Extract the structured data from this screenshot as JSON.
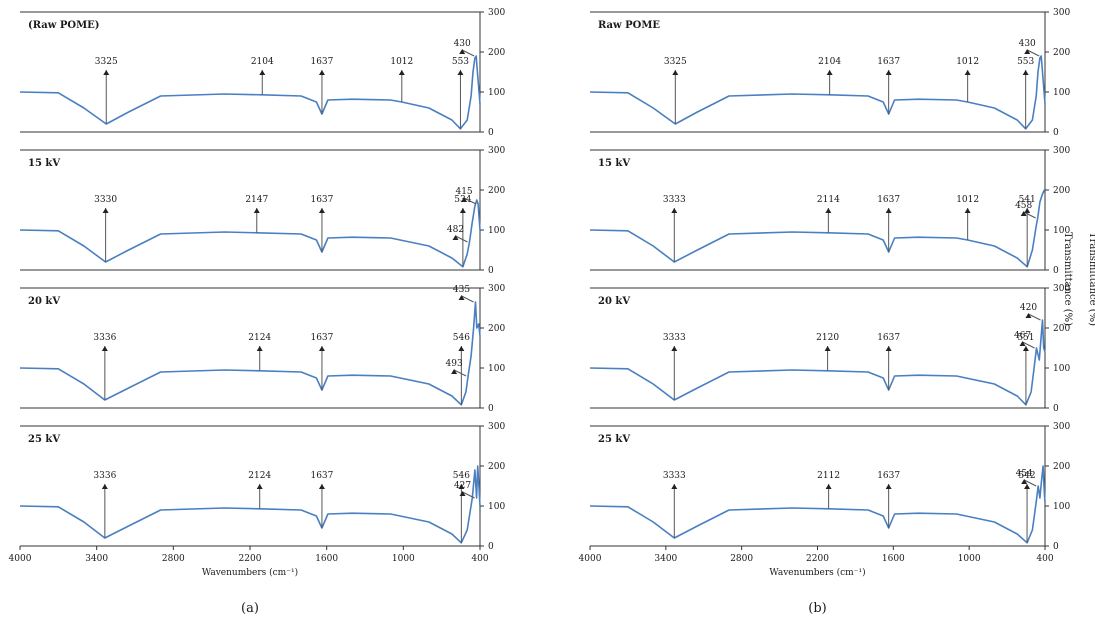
{
  "figure": {
    "line_color": "#4a7fc1",
    "axis_color": "#333333",
    "x_axis": {
      "reversed": true,
      "range": [
        4000,
        400
      ],
      "ticks": [
        "4000",
        "3400",
        "2800",
        "2200",
        "1600",
        "1000",
        "400"
      ],
      "label": "Wavenumbers (cm⁻¹)"
    },
    "y_axis": {
      "range": [
        0,
        300
      ],
      "ticks": [
        "0",
        "100",
        "200",
        "300"
      ],
      "label": "Transmittance (%)",
      "position": "right"
    }
  },
  "chart_data": [
    {
      "type": "line",
      "caption": "(a)",
      "panels": [
        {
          "title": "(Raw POME)",
          "series": [
            {
              "x": [
                4000,
                3700,
                3500,
                3325,
                3150,
                2900,
                2400,
                2104,
                1800,
                1680,
                1637,
                1590,
                1400,
                1100,
                1012,
                800,
                620,
                553,
                500,
                470,
                455,
                440,
                430,
                420,
                405,
                400
              ],
              "y": [
                100,
                98,
                60,
                20,
                50,
                90,
                95,
                93,
                90,
                75,
                45,
                80,
                82,
                80,
                75,
                60,
                30,
                8,
                30,
                90,
                150,
                185,
                190,
                150,
                90,
                70
              ]
            }
          ],
          "peaks": [
            {
              "label": "3325",
              "x": 3325,
              "y": 20,
              "type": "valley"
            },
            {
              "label": "2104",
              "x": 2104,
              "y": 93,
              "type": "valley"
            },
            {
              "label": "1637",
              "x": 1637,
              "y": 45,
              "type": "valley"
            },
            {
              "label": "1012",
              "x": 1012,
              "y": 75,
              "type": "valley"
            },
            {
              "label": "553",
              "x": 553,
              "y": 8,
              "type": "valley"
            },
            {
              "label": "430",
              "x": 430,
              "y": 190,
              "type": "peak"
            }
          ]
        },
        {
          "title": "15 kV",
          "series": [
            {
              "x": [
                4000,
                3700,
                3500,
                3330,
                3150,
                2900,
                2400,
                2147,
                1800,
                1680,
                1637,
                1590,
                1400,
                1100,
                800,
                620,
                534,
                500,
                482,
                460,
                440,
                425,
                415,
                405,
                400
              ],
              "y": [
                100,
                98,
                60,
                20,
                50,
                90,
                95,
                93,
                90,
                75,
                45,
                80,
                82,
                80,
                60,
                30,
                8,
                40,
                70,
                120,
                160,
                175,
                165,
                120,
                100
              ]
            }
          ],
          "peaks": [
            {
              "label": "3330",
              "x": 3330,
              "y": 20,
              "type": "valley"
            },
            {
              "label": "2147",
              "x": 2147,
              "y": 93,
              "type": "valley"
            },
            {
              "label": "1637",
              "x": 1637,
              "y": 45,
              "type": "valley"
            },
            {
              "label": "534",
              "x": 534,
              "y": 8,
              "type": "valley"
            },
            {
              "label": "482",
              "x": 482,
              "y": 70,
              "type": "peak"
            },
            {
              "label": "415",
              "x": 415,
              "y": 165,
              "type": "peak"
            }
          ]
        },
        {
          "title": "20 kV",
          "series": [
            {
              "x": [
                4000,
                3700,
                3500,
                3336,
                3150,
                2900,
                2400,
                2124,
                1800,
                1680,
                1637,
                1590,
                1400,
                1100,
                800,
                620,
                546,
                510,
                493,
                470,
                450,
                435,
                425,
                410,
                400
              ],
              "y": [
                100,
                98,
                60,
                20,
                50,
                90,
                95,
                93,
                90,
                75,
                45,
                80,
                82,
                80,
                60,
                30,
                8,
                40,
                80,
                130,
                200,
                265,
                200,
                210,
                180
              ]
            }
          ],
          "peaks": [
            {
              "label": "3336",
              "x": 3336,
              "y": 20,
              "type": "valley"
            },
            {
              "label": "2124",
              "x": 2124,
              "y": 93,
              "type": "valley"
            },
            {
              "label": "1637",
              "x": 1637,
              "y": 45,
              "type": "valley"
            },
            {
              "label": "546",
              "x": 546,
              "y": 8,
              "type": "valley"
            },
            {
              "label": "493",
              "x": 493,
              "y": 80,
              "type": "peak"
            },
            {
              "label": "435",
              "x": 435,
              "y": 265,
              "type": "peak"
            }
          ]
        },
        {
          "title": "25 kV",
          "series": [
            {
              "x": [
                4000,
                3700,
                3500,
                3336,
                3150,
                2900,
                2400,
                2124,
                1800,
                1680,
                1637,
                1590,
                1400,
                1100,
                800,
                620,
                546,
                500,
                460,
                440,
                427,
                418,
                410,
                400
              ],
              "y": [
                100,
                98,
                60,
                20,
                50,
                90,
                95,
                93,
                90,
                75,
                45,
                80,
                82,
                80,
                60,
                30,
                8,
                40,
                120,
                190,
                120,
                200,
                160,
                100
              ]
            }
          ],
          "peaks": [
            {
              "label": "3336",
              "x": 3336,
              "y": 20,
              "type": "valley"
            },
            {
              "label": "2124",
              "x": 2124,
              "y": 93,
              "type": "valley"
            },
            {
              "label": "1637",
              "x": 1637,
              "y": 45,
              "type": "valley"
            },
            {
              "label": "546",
              "x": 546,
              "y": 8,
              "type": "valley"
            },
            {
              "label": "427",
              "x": 427,
              "y": 120,
              "type": "peak"
            }
          ]
        }
      ]
    },
    {
      "type": "line",
      "caption": "(b)",
      "panels": [
        {
          "title": "Raw POME",
          "series": [
            {
              "x": [
                4000,
                3700,
                3500,
                3325,
                3150,
                2900,
                2400,
                2104,
                1800,
                1680,
                1637,
                1590,
                1400,
                1100,
                1012,
                800,
                620,
                553,
                500,
                470,
                455,
                440,
                430,
                420,
                405,
                400
              ],
              "y": [
                100,
                98,
                60,
                20,
                50,
                90,
                95,
                93,
                90,
                75,
                45,
                80,
                82,
                80,
                75,
                60,
                30,
                8,
                30,
                90,
                150,
                185,
                190,
                150,
                90,
                70
              ]
            }
          ],
          "peaks": [
            {
              "label": "3325",
              "x": 3325,
              "y": 20,
              "type": "valley"
            },
            {
              "label": "2104",
              "x": 2104,
              "y": 93,
              "type": "valley"
            },
            {
              "label": "1637",
              "x": 1637,
              "y": 45,
              "type": "valley"
            },
            {
              "label": "1012",
              "x": 1012,
              "y": 75,
              "type": "valley"
            },
            {
              "label": "553",
              "x": 553,
              "y": 8,
              "type": "valley"
            },
            {
              "label": "430",
              "x": 430,
              "y": 190,
              "type": "peak"
            }
          ]
        },
        {
          "title": "15 kV",
          "series": [
            {
              "x": [
                4000,
                3700,
                3500,
                3333,
                3150,
                2900,
                2400,
                2114,
                1800,
                1680,
                1637,
                1590,
                1400,
                1100,
                1012,
                800,
                620,
                541,
                500,
                470,
                458,
                440,
                420,
                405,
                400
              ],
              "y": [
                100,
                98,
                60,
                20,
                50,
                90,
                95,
                93,
                90,
                75,
                45,
                80,
                82,
                80,
                75,
                60,
                30,
                8,
                50,
                110,
                130,
                170,
                190,
                200,
                200
              ]
            }
          ],
          "peaks": [
            {
              "label": "3333",
              "x": 3333,
              "y": 20,
              "type": "valley"
            },
            {
              "label": "2114",
              "x": 2114,
              "y": 93,
              "type": "valley"
            },
            {
              "label": "1637",
              "x": 1637,
              "y": 45,
              "type": "valley"
            },
            {
              "label": "1012",
              "x": 1012,
              "y": 75,
              "type": "valley"
            },
            {
              "label": "541",
              "x": 541,
              "y": 8,
              "type": "valley"
            },
            {
              "label": "458",
              "x": 458,
              "y": 130,
              "type": "peak"
            }
          ]
        },
        {
          "title": "20 kV",
          "series": [
            {
              "x": [
                4000,
                3700,
                3500,
                3333,
                3150,
                2900,
                2400,
                2120,
                1800,
                1680,
                1637,
                1590,
                1400,
                1100,
                800,
                620,
                551,
                510,
                490,
                467,
                445,
                430,
                420,
                410,
                400
              ],
              "y": [
                100,
                98,
                60,
                20,
                50,
                90,
                95,
                93,
                90,
                75,
                45,
                80,
                82,
                80,
                60,
                30,
                8,
                40,
                90,
                150,
                120,
                180,
                220,
                150,
                140
              ]
            }
          ],
          "peaks": [
            {
              "label": "3333",
              "x": 3333,
              "y": 20,
              "type": "valley"
            },
            {
              "label": "2120",
              "x": 2120,
              "y": 93,
              "type": "valley"
            },
            {
              "label": "1637",
              "x": 1637,
              "y": 45,
              "type": "valley"
            },
            {
              "label": "551",
              "x": 551,
              "y": 8,
              "type": "valley"
            },
            {
              "label": "467",
              "x": 467,
              "y": 150,
              "type": "peak"
            },
            {
              "label": "420",
              "x": 420,
              "y": 220,
              "type": "peak"
            }
          ]
        },
        {
          "title": "25 kV",
          "series": [
            {
              "x": [
                4000,
                3700,
                3500,
                3333,
                3150,
                2900,
                2400,
                2112,
                1800,
                1680,
                1637,
                1590,
                1400,
                1100,
                800,
                620,
                542,
                500,
                470,
                454,
                440,
                425,
                415,
                405,
                400
              ],
              "y": [
                100,
                98,
                60,
                20,
                50,
                90,
                95,
                93,
                90,
                75,
                45,
                80,
                82,
                80,
                60,
                30,
                8,
                40,
                110,
                150,
                120,
                170,
                200,
                130,
                110
              ]
            }
          ],
          "peaks": [
            {
              "label": "3333",
              "x": 3333,
              "y": 20,
              "type": "valley"
            },
            {
              "label": "2112",
              "x": 2112,
              "y": 93,
              "type": "valley"
            },
            {
              "label": "1637",
              "x": 1637,
              "y": 45,
              "type": "valley"
            },
            {
              "label": "542",
              "x": 542,
              "y": 8,
              "type": "valley"
            },
            {
              "label": "454",
              "x": 454,
              "y": 150,
              "type": "peak"
            }
          ]
        }
      ]
    }
  ]
}
